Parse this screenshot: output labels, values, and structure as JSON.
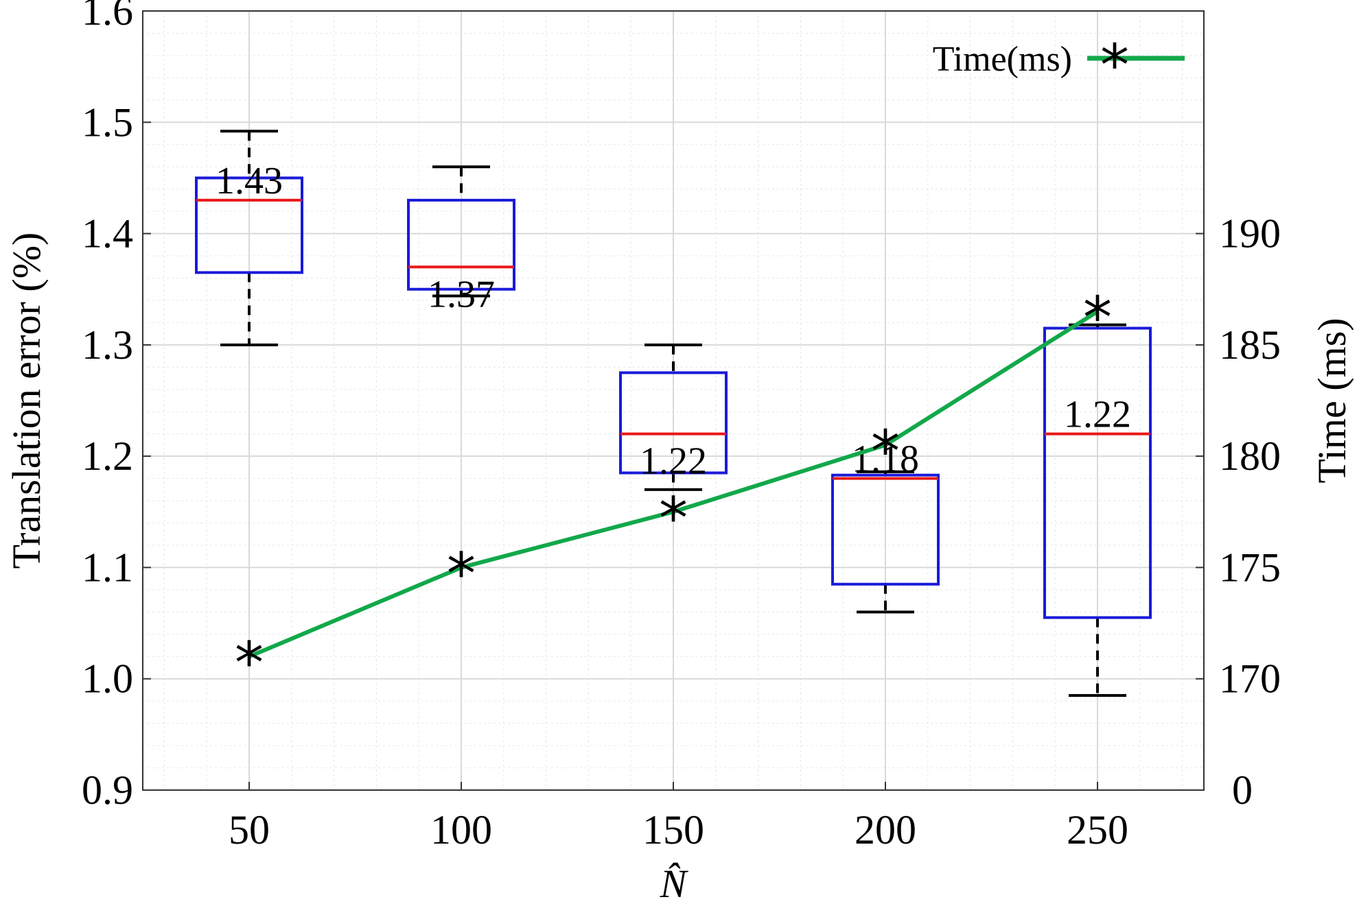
{
  "chart_data": {
    "type": "box",
    "x_ticks": [
      50,
      100,
      150,
      200,
      250
    ],
    "xlim": [
      25,
      275
    ],
    "xlabel": "N̂",
    "left_axis": {
      "label": "Translation error (%)",
      "ylim": [
        0.9,
        1.6
      ],
      "ticks": [
        "0.9",
        "1.0",
        "1.1",
        "1.2",
        "1.3",
        "1.4",
        "1.5",
        "1.6"
      ]
    },
    "right_axis": {
      "label": "Time (ms)",
      "ticks": [
        "0",
        "170",
        "175",
        "180",
        "185",
        "190"
      ]
    },
    "box_series": [
      {
        "x": 50,
        "whisker_low": 1.3,
        "q1": 1.365,
        "median": 1.43,
        "q3": 1.45,
        "whisker_high": 1.492,
        "median_label": "1.43"
      },
      {
        "x": 100,
        "whisker_low": 1.344,
        "q1": 1.35,
        "median": 1.37,
        "q3": 1.43,
        "whisker_high": 1.46,
        "median_label": "1.37"
      },
      {
        "x": 150,
        "whisker_low": 1.17,
        "q1": 1.185,
        "median": 1.22,
        "q3": 1.275,
        "whisker_high": 1.3,
        "median_label": "1.22"
      },
      {
        "x": 200,
        "whisker_low": 1.06,
        "q1": 1.085,
        "median": 1.18,
        "q3": 1.183,
        "whisker_high": 1.186,
        "median_label": "1.18"
      },
      {
        "x": 250,
        "whisker_low": 0.985,
        "q1": 1.055,
        "median": 1.22,
        "q3": 1.315,
        "whisker_high": 1.318,
        "median_label": "1.22"
      }
    ],
    "line_series": {
      "name": "Time(ms)",
      "axis": "right",
      "x": [
        50,
        100,
        150,
        200,
        250
      ],
      "y": [
        171.0,
        175.0,
        177.5,
        180.5,
        186.5
      ]
    },
    "grid": true,
    "legend": "top-right",
    "colors": {
      "box": "#1a1ad9",
      "median": "#e81818",
      "whisker": "#000000",
      "line": "#12a84a",
      "marker": "#000000",
      "grid": "#d9d9d9"
    }
  }
}
